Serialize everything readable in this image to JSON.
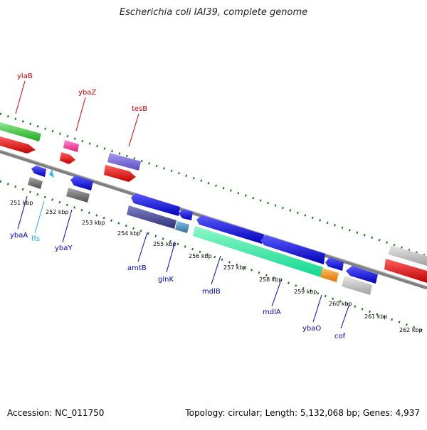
{
  "title": "Escherichia coli IAI39, complete genome",
  "footer": {
    "accession": "Accession: NC_011750",
    "topology": "Topology: circular; Length: 5,132,068 bp; Genes: 4,937"
  },
  "colors": {
    "red": "#e00000",
    "blue": "#0000dd",
    "cyan": "#00b0e0",
    "backbone": "#808080",
    "tick": "#1a7a1a"
  },
  "kbp_labels": [
    "251 kbp",
    "252 kbp",
    "253 kbp",
    "254 kbp",
    "255 kbp",
    "256 kbp",
    "257 kbp",
    "258 kbp",
    "259 kbp",
    "260 kbp",
    "261 kbp",
    "262 kbp"
  ],
  "gene_labels_top": [
    "ylaB",
    "ybaZ",
    "tesB"
  ],
  "gene_labels_bottom": [
    "ybaA",
    "ffs",
    "ybaY",
    "amtB",
    "glnK",
    "mdlB",
    "mdlA",
    "ybaO",
    "cof"
  ]
}
